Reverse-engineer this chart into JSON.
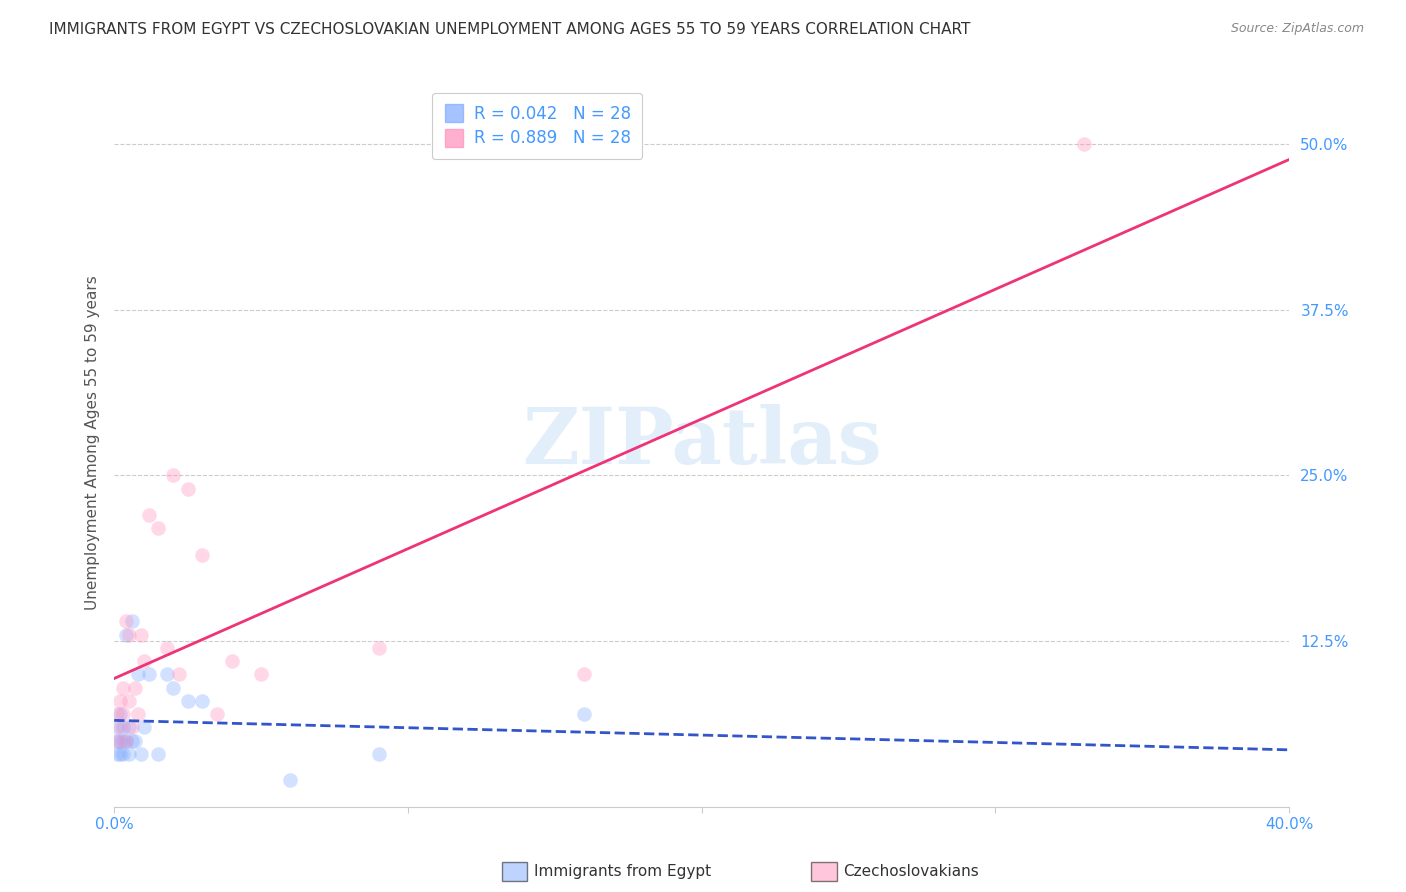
{
  "title": "IMMIGRANTS FROM EGYPT VS CZECHOSLOVAKIAN UNEMPLOYMENT AMONG AGES 55 TO 59 YEARS CORRELATION CHART",
  "source": "Source: ZipAtlas.com",
  "ylabel": "Unemployment Among Ages 55 to 59 years",
  "xlim": [
    0.0,
    0.4
  ],
  "ylim": [
    0.0,
    0.55
  ],
  "xticks": [
    0.0,
    0.1,
    0.2,
    0.3,
    0.4
  ],
  "xticklabels": [
    "0.0%",
    "",
    "",
    "",
    "40.0%"
  ],
  "yticks": [
    0.0,
    0.125,
    0.25,
    0.375,
    0.5
  ],
  "yticklabels": [
    "",
    "12.5%",
    "25.0%",
    "37.5%",
    "50.0%"
  ],
  "legend_entry_1": "R = 0.042   N = 28",
  "legend_entry_2": "R = 0.889   N = 28",
  "legend_label_1": "Immigrants from Egypt",
  "legend_label_2": "Czechoslovakians",
  "watermark": "ZIPatlas",
  "egypt_x": [
    0.001,
    0.001,
    0.001,
    0.002,
    0.002,
    0.002,
    0.003,
    0.003,
    0.003,
    0.004,
    0.004,
    0.005,
    0.005,
    0.006,
    0.006,
    0.007,
    0.008,
    0.009,
    0.01,
    0.012,
    0.015,
    0.018,
    0.02,
    0.025,
    0.03,
    0.06,
    0.09,
    0.16
  ],
  "egypt_y": [
    0.05,
    0.06,
    0.04,
    0.07,
    0.05,
    0.04,
    0.06,
    0.05,
    0.04,
    0.13,
    0.05,
    0.06,
    0.04,
    0.05,
    0.14,
    0.05,
    0.1,
    0.04,
    0.06,
    0.1,
    0.04,
    0.1,
    0.09,
    0.08,
    0.08,
    0.02,
    0.04,
    0.07
  ],
  "czech_x": [
    0.001,
    0.001,
    0.002,
    0.002,
    0.003,
    0.003,
    0.004,
    0.004,
    0.005,
    0.005,
    0.006,
    0.007,
    0.008,
    0.009,
    0.01,
    0.012,
    0.015,
    0.018,
    0.02,
    0.022,
    0.025,
    0.03,
    0.035,
    0.04,
    0.05,
    0.09,
    0.16,
    0.33
  ],
  "czech_y": [
    0.05,
    0.07,
    0.06,
    0.08,
    0.07,
    0.09,
    0.05,
    0.14,
    0.08,
    0.13,
    0.06,
    0.09,
    0.07,
    0.13,
    0.11,
    0.22,
    0.21,
    0.12,
    0.25,
    0.1,
    0.24,
    0.19,
    0.07,
    0.11,
    0.1,
    0.12,
    0.1,
    0.5
  ],
  "egypt_color": "#7faaff",
  "czech_color": "#ff8fbb",
  "egypt_line_color": "#3355cc",
  "czech_line_color": "#ee3377",
  "background_color": "#ffffff",
  "grid_color": "#cccccc",
  "title_fontsize": 11,
  "axis_label_fontsize": 11,
  "tick_fontsize": 11,
  "marker_size": 110,
  "marker_alpha": 0.35,
  "tick_color": "#4499ff"
}
